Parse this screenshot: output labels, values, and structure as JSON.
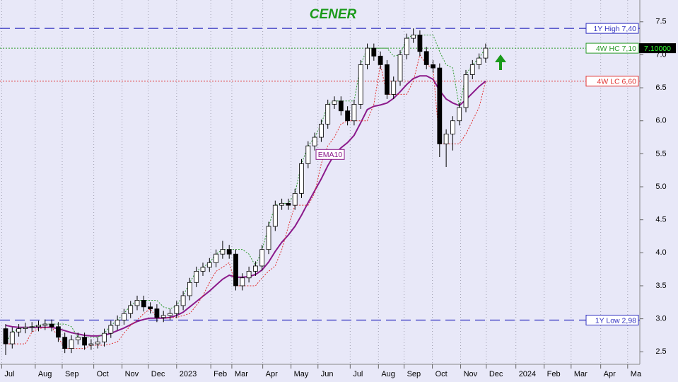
{
  "chart_data": {
    "type": "candlestick",
    "title": "CENER",
    "open": [
      2.85,
      2.62,
      2.8,
      2.85,
      2.87,
      2.88,
      2.9,
      2.92,
      2.88,
      2.72,
      2.55,
      2.68,
      2.72,
      2.6,
      2.62,
      2.65,
      2.78,
      2.9,
      2.98,
      3.08,
      3.2,
      3.28,
      3.18,
      3.15,
      3.02,
      3.05,
      3.08,
      3.2,
      3.35,
      3.55,
      3.72,
      3.78,
      3.85,
      3.98,
      4.05,
      3.98,
      3.5,
      3.62,
      3.72,
      3.8,
      4.05,
      4.4,
      4.72,
      4.75,
      4.72,
      4.9,
      5.35,
      5.62,
      5.75,
      5.95,
      6.25,
      6.3,
      6.15,
      6.0,
      6.25,
      6.85,
      7.1,
      6.98,
      6.85,
      6.4,
      6.6,
      7.0,
      7.25,
      7.3,
      7.05,
      6.85,
      6.8,
      5.65,
      5.8,
      6.0,
      6.2,
      6.7,
      6.85,
      6.95
    ],
    "high": [
      2.92,
      2.87,
      2.92,
      2.94,
      2.95,
      2.97,
      2.99,
      2.99,
      2.95,
      2.79,
      2.75,
      2.79,
      2.79,
      2.69,
      2.72,
      2.85,
      2.97,
      3.05,
      3.15,
      3.27,
      3.35,
      3.35,
      3.25,
      3.22,
      3.12,
      3.15,
      3.27,
      3.42,
      3.62,
      3.79,
      3.85,
      3.92,
      4.05,
      4.18,
      4.12,
      4.05,
      3.69,
      3.79,
      3.87,
      4.12,
      4.47,
      4.79,
      4.82,
      4.82,
      4.97,
      5.42,
      5.69,
      5.82,
      6.02,
      6.32,
      6.37,
      6.37,
      6.22,
      6.32,
      6.92,
      7.17,
      7.17,
      7.05,
      6.92,
      6.67,
      7.07,
      7.32,
      7.4,
      7.37,
      7.12,
      6.92,
      6.87,
      5.87,
      6.07,
      6.27,
      6.77,
      6.92,
      7.02,
      7.17
    ],
    "low": [
      2.45,
      2.55,
      2.73,
      2.78,
      2.8,
      2.81,
      2.83,
      2.81,
      2.65,
      2.48,
      2.48,
      2.61,
      2.53,
      2.53,
      2.55,
      2.58,
      2.71,
      2.83,
      2.91,
      3.01,
      3.13,
      3.11,
      3.08,
      2.95,
      2.95,
      2.98,
      3.01,
      3.13,
      3.28,
      3.48,
      3.65,
      3.71,
      3.78,
      3.91,
      3.91,
      3.43,
      3.43,
      3.55,
      3.65,
      3.73,
      3.98,
      4.33,
      4.65,
      4.65,
      4.65,
      4.83,
      5.28,
      5.55,
      5.68,
      5.88,
      6.18,
      6.08,
      5.93,
      5.93,
      6.18,
      6.78,
      6.91,
      6.78,
      6.33,
      6.33,
      6.53,
      6.93,
      7.18,
      6.98,
      6.78,
      6.73,
      5.45,
      5.3,
      5.55,
      5.93,
      6.13,
      6.63,
      6.78,
      6.88
    ],
    "close": [
      2.62,
      2.8,
      2.85,
      2.87,
      2.88,
      2.9,
      2.92,
      2.88,
      2.72,
      2.55,
      2.68,
      2.72,
      2.6,
      2.62,
      2.65,
      2.78,
      2.9,
      2.98,
      3.08,
      3.2,
      3.28,
      3.18,
      3.15,
      3.02,
      3.05,
      3.08,
      3.2,
      3.35,
      3.55,
      3.72,
      3.78,
      3.85,
      3.98,
      4.05,
      3.98,
      3.5,
      3.62,
      3.72,
      3.8,
      4.05,
      4.4,
      4.72,
      4.75,
      4.72,
      4.9,
      5.35,
      5.62,
      5.75,
      5.95,
      6.25,
      6.3,
      6.15,
      6.0,
      6.25,
      6.85,
      7.1,
      6.98,
      6.85,
      6.4,
      6.6,
      7.0,
      7.25,
      7.3,
      7.05,
      6.85,
      6.8,
      5.65,
      5.8,
      6.0,
      6.2,
      6.7,
      6.85,
      6.95,
      7.1
    ],
    "lines": [
      {
        "name": "EMA10",
        "color": "#8b1a8b",
        "values": [
          2.9,
          2.88,
          2.87,
          2.87,
          2.87,
          2.87,
          2.87,
          2.87,
          2.85,
          2.82,
          2.79,
          2.77,
          2.75,
          2.74,
          2.74,
          2.75,
          2.78,
          2.82,
          2.86,
          2.91,
          2.96,
          2.99,
          3.01,
          3.01,
          3.01,
          3.02,
          3.05,
          3.1,
          3.18,
          3.26,
          3.34,
          3.42,
          3.51,
          3.6,
          3.66,
          3.63,
          3.63,
          3.64,
          3.67,
          3.74,
          3.86,
          4.02,
          4.16,
          4.27,
          4.4,
          4.57,
          4.76,
          4.94,
          5.12,
          5.32,
          5.49,
          5.59,
          5.67,
          5.78,
          5.97,
          6.17,
          6.22,
          6.24,
          6.27,
          6.34,
          6.44,
          6.55,
          6.64,
          6.68,
          6.68,
          6.63,
          6.46,
          6.33,
          6.27,
          6.23,
          6.32,
          6.42,
          6.52,
          6.6
        ]
      },
      {
        "color": "#2a9a2a",
        "values": [
          2.62,
          2.8,
          2.85,
          2.87,
          2.88,
          2.9,
          2.92,
          2.92,
          2.92,
          2.92,
          2.88,
          2.72,
          2.72,
          2.72,
          2.72,
          2.78,
          2.9,
          2.98,
          3.08,
          3.2,
          3.28,
          3.28,
          3.28,
          3.28,
          3.18,
          3.15,
          3.2,
          3.35,
          3.55,
          3.72,
          3.78,
          3.85,
          3.98,
          4.05,
          4.05,
          4.05,
          4.05,
          3.98,
          3.8,
          4.05,
          4.4,
          4.72,
          4.75,
          4.75,
          4.9,
          5.35,
          5.62,
          5.75,
          5.95,
          6.25,
          6.3,
          6.3,
          6.3,
          6.3,
          6.85,
          7.1,
          7.1,
          7.1,
          7.1,
          6.98,
          7.0,
          7.25,
          7.3,
          7.3,
          7.3,
          7.3,
          7.05,
          6.85,
          6.8,
          6.2,
          6.7,
          6.85,
          6.95,
          7.1
        ]
      },
      {
        "color": "#e03030",
        "values": [
          2.62,
          2.62,
          2.62,
          2.62,
          2.8,
          2.85,
          2.87,
          2.88,
          2.72,
          2.55,
          2.55,
          2.55,
          2.55,
          2.6,
          2.6,
          2.6,
          2.62,
          2.65,
          2.78,
          2.9,
          2.98,
          3.08,
          3.15,
          3.02,
          3.02,
          3.02,
          3.02,
          3.05,
          3.08,
          3.2,
          3.35,
          3.55,
          3.72,
          3.78,
          3.85,
          3.5,
          3.5,
          3.5,
          3.5,
          3.62,
          3.72,
          3.8,
          4.05,
          4.4,
          4.72,
          4.72,
          4.72,
          4.9,
          5.35,
          5.62,
          5.75,
          5.95,
          6.0,
          6.0,
          6.0,
          6.0,
          6.25,
          6.85,
          6.4,
          6.4,
          6.4,
          6.4,
          6.6,
          7.0,
          6.85,
          6.8,
          5.65,
          5.65,
          5.65,
          5.65,
          5.8,
          6.0,
          6.2,
          6.6
        ]
      }
    ],
    "levels": [
      {
        "label": "1Y High 7,40",
        "value": 7.4,
        "color": "#3030c0"
      },
      {
        "label": "4W HC 7,10",
        "value": 7.1,
        "color": "#2a9a2a"
      },
      {
        "label": "4W LC 6,60",
        "value": 6.6,
        "color": "#e03030"
      },
      {
        "label": "1Y Low 2,98",
        "value": 2.98,
        "color": "#3030c0"
      }
    ],
    "last_price": {
      "value": 7.1,
      "label": "7.10000"
    },
    "ylim": [
      2.31,
      7.83
    ],
    "yticks": [
      2.5,
      {
        "value": 3,
        "label": "3.0"
      },
      3.5,
      {
        "value": 4,
        "label": "4.0"
      },
      4.5,
      {
        "value": 5,
        "label": "5.0"
      },
      5.5,
      {
        "value": 6,
        "label": "6.0"
      },
      6.5,
      {
        "value": 7,
        "label": "7.0"
      },
      7.5
    ],
    "xlim": [
      -0.86,
      96.45
    ],
    "xticks": [
      {
        "value": -0.6,
        "label": "Jul"
      },
      {
        "value": 4.5,
        "label": "Aug"
      },
      {
        "value": 8.6,
        "label": "Sep"
      },
      {
        "value": 13.4,
        "label": "Oct"
      },
      {
        "value": 17.7,
        "label": "Nov"
      },
      {
        "value": 21.7,
        "label": "Dec"
      },
      {
        "value": 26,
        "label": "2023"
      },
      {
        "value": 31.2,
        "label": "Feb"
      },
      {
        "value": 34.4,
        "label": "Mar"
      },
      {
        "value": 39.1,
        "label": "Apr"
      },
      {
        "value": 43.4,
        "label": "May"
      },
      {
        "value": 47.5,
        "label": "Jun"
      },
      {
        "value": 52.4,
        "label": "Jul"
      },
      {
        "value": 56.7,
        "label": "Aug"
      },
      {
        "value": 60.6,
        "label": "Sep"
      },
      {
        "value": 64.9,
        "label": "Oct"
      },
      {
        "value": 69.2,
        "label": "Nov"
      },
      {
        "value": 73.1,
        "label": "Dec"
      },
      {
        "value": 77.6,
        "label": "2024"
      },
      {
        "value": 81.9,
        "label": "Feb"
      },
      {
        "value": 86,
        "label": "Mar"
      },
      {
        "value": 90.5,
        "label": "Apr"
      },
      {
        "value": 94.6,
        "label": "Ma"
      }
    ]
  }
}
